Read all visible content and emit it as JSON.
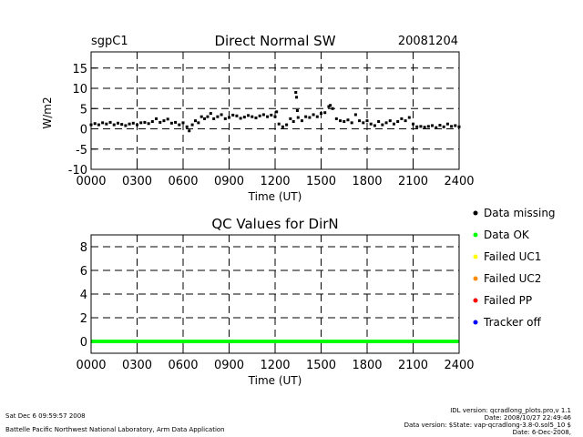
{
  "header": {
    "site": "sgpC1",
    "date": "20081204"
  },
  "chart_data": [
    {
      "type": "scatter",
      "title": "Direct Normal SW",
      "xlabel": "Time (UT)",
      "ylabel": "W/m2",
      "xlim": [
        0,
        24
      ],
      "ylim": [
        -10,
        19
      ],
      "x_ticks": [
        0,
        3,
        6,
        9,
        12,
        15,
        18,
        21,
        24
      ],
      "x_tick_labels": [
        "0000",
        "0300",
        "0600",
        "0900",
        "1200",
        "1500",
        "1800",
        "2100",
        "2400"
      ],
      "y_ticks": [
        -10,
        -5,
        0,
        5,
        10,
        15
      ],
      "y_tick_labels": [
        "-10",
        "-5",
        "0",
        "5",
        "10",
        "15"
      ],
      "grid": true,
      "grid_style": "dashed",
      "marker_color": "#000000",
      "series": [
        {
          "points": [
            [
              0.0,
              1.0
            ],
            [
              0.25,
              1.3
            ],
            [
              0.5,
              1.0
            ],
            [
              0.75,
              1.5
            ],
            [
              1.0,
              1.2
            ],
            [
              1.25,
              1.6
            ],
            [
              1.5,
              1.0
            ],
            [
              1.75,
              1.4
            ],
            [
              2.0,
              1.1
            ],
            [
              2.25,
              0.8
            ],
            [
              2.5,
              1.2
            ],
            [
              2.75,
              1.4
            ],
            [
              3.0,
              1.0
            ],
            [
              3.25,
              1.5
            ],
            [
              3.5,
              1.6
            ],
            [
              3.75,
              1.3
            ],
            [
              4.0,
              1.8
            ],
            [
              4.25,
              2.5
            ],
            [
              4.5,
              1.6
            ],
            [
              4.75,
              2.0
            ],
            [
              5.0,
              2.4
            ],
            [
              5.25,
              1.4
            ],
            [
              5.5,
              1.6
            ],
            [
              5.75,
              1.0
            ],
            [
              6.0,
              1.5
            ],
            [
              6.25,
              0.5
            ],
            [
              6.4,
              -0.5
            ],
            [
              6.6,
              1.0
            ],
            [
              6.8,
              2.0
            ],
            [
              7.0,
              1.5
            ],
            [
              7.2,
              3.0
            ],
            [
              7.4,
              2.5
            ],
            [
              7.6,
              3.0
            ],
            [
              7.8,
              3.8
            ],
            [
              8.0,
              2.5
            ],
            [
              8.25,
              3.0
            ],
            [
              8.5,
              3.5
            ],
            [
              8.75,
              2.5
            ],
            [
              9.0,
              2.8
            ],
            [
              9.25,
              3.4
            ],
            [
              9.5,
              3.2
            ],
            [
              9.75,
              2.6
            ],
            [
              10.0,
              2.9
            ],
            [
              10.25,
              3.3
            ],
            [
              10.5,
              3.0
            ],
            [
              10.75,
              2.7
            ],
            [
              11.0,
              3.2
            ],
            [
              11.25,
              3.5
            ],
            [
              11.5,
              3.0
            ],
            [
              11.75,
              3.4
            ],
            [
              12.0,
              3.0
            ],
            [
              12.1,
              4.2
            ],
            [
              12.25,
              1.2
            ],
            [
              12.5,
              0.5
            ],
            [
              12.75,
              1.0
            ],
            [
              13.0,
              2.5
            ],
            [
              13.2,
              1.8
            ],
            [
              13.35,
              9.0
            ],
            [
              13.4,
              7.8
            ],
            [
              13.45,
              4.5
            ],
            [
              13.5,
              2.8
            ],
            [
              13.75,
              2.0
            ],
            [
              14.0,
              3.0
            ],
            [
              14.25,
              2.8
            ],
            [
              14.5,
              3.5
            ],
            [
              14.75,
              3.0
            ],
            [
              15.0,
              3.8
            ],
            [
              15.25,
              4.0
            ],
            [
              15.5,
              5.5
            ],
            [
              15.6,
              5.8
            ],
            [
              15.75,
              5.0
            ],
            [
              16.0,
              2.5
            ],
            [
              16.25,
              2.0
            ],
            [
              16.5,
              1.8
            ],
            [
              16.75,
              2.2
            ],
            [
              17.0,
              1.5
            ],
            [
              17.25,
              3.5
            ],
            [
              17.5,
              2.0
            ],
            [
              17.75,
              1.5
            ],
            [
              18.0,
              2.0
            ],
            [
              18.25,
              1.2
            ],
            [
              18.5,
              0.8
            ],
            [
              18.75,
              1.8
            ],
            [
              19.0,
              1.0
            ],
            [
              19.25,
              1.5
            ],
            [
              19.5,
              2.0
            ],
            [
              19.75,
              1.2
            ],
            [
              20.0,
              1.8
            ],
            [
              20.25,
              2.5
            ],
            [
              20.5,
              2.0
            ],
            [
              20.75,
              2.8
            ],
            [
              21.0,
              1.2
            ],
            [
              21.25,
              0.5
            ],
            [
              21.5,
              0.6
            ],
            [
              21.75,
              0.4
            ],
            [
              22.0,
              0.6
            ],
            [
              22.25,
              0.8
            ],
            [
              22.5,
              0.3
            ],
            [
              22.75,
              0.9
            ],
            [
              23.0,
              0.5
            ],
            [
              23.25,
              1.2
            ],
            [
              23.5,
              0.6
            ],
            [
              23.75,
              0.8
            ],
            [
              24.0,
              0.5
            ]
          ]
        }
      ]
    },
    {
      "type": "line",
      "title": "QC Values for DirN",
      "xlabel": "Time (UT)",
      "ylabel": "",
      "xlim": [
        0,
        24
      ],
      "ylim": [
        -1,
        9
      ],
      "x_ticks": [
        0,
        3,
        6,
        9,
        12,
        15,
        18,
        21,
        24
      ],
      "x_tick_labels": [
        "0000",
        "0300",
        "0600",
        "0900",
        "1200",
        "1500",
        "1800",
        "2100",
        "2400"
      ],
      "y_ticks": [
        0,
        2,
        4,
        6,
        8
      ],
      "y_tick_labels": [
        "0",
        "2",
        "4",
        "6",
        "8"
      ],
      "grid": true,
      "grid_style": "dashed",
      "series": [
        {
          "x": [
            0,
            24
          ],
          "y": [
            0,
            0
          ],
          "color": "#00ff00"
        }
      ],
      "legend": {
        "placement": "right",
        "items": [
          {
            "label": "Data missing",
            "color": "#000000"
          },
          {
            "label": "Data OK",
            "color": "#00ff00"
          },
          {
            "label": "Failed UC1",
            "color": "#ffff00"
          },
          {
            "label": "Failed UC2",
            "color": "#ff8c00"
          },
          {
            "label": "Failed PP",
            "color": "#ff0000"
          },
          {
            "label": "Tracker off",
            "color": "#0000ff"
          }
        ]
      }
    }
  ],
  "footer": {
    "left_line1": "Sat Dec  6 09:59:57 2008",
    "left_line2": "Battelle Pacific Northwest National Laboratory, Arm Data Application",
    "right_line1": "IDL version: qcradlong_plots.pro,v 1.1",
    "right_line2": "Date: 2008/10/27 22:49:46",
    "right_line3": "Data version: $State: vap-qcradlong-3.8-0.sol5_10 $",
    "right_line4": "Date: 6-Dec-2008,"
  }
}
